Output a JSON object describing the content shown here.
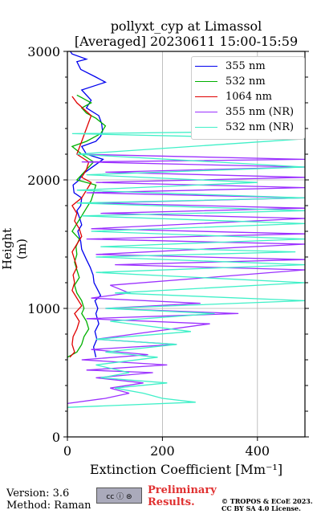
{
  "title_line1": "pollyxt_cyp at Limassol",
  "title_line2": "[Averaged] 20230611 15:00-15:59",
  "xlabel": "Extinction Coefficient [Mm⁻¹]",
  "ylabel": "Height (m)",
  "legend": [
    {
      "label": "355 nm",
      "color": "#0000ee"
    },
    {
      "label": "532 nm",
      "color": "#00b000"
    },
    {
      "label": "1064 nm",
      "color": "#e00000"
    },
    {
      "label": "355 nm (NR)",
      "color": "#9b30ff"
    },
    {
      "label": "532 nm (NR)",
      "color": "#40f0c8"
    }
  ],
  "footer": {
    "version": "Version: 3.6",
    "method": "Method: Raman",
    "cc_badge": "cc ⓘ ⊜",
    "preliminary_line1": "Preliminary",
    "preliminary_line2": "Results.",
    "copyright_line1": "© TROPOS & ECoE 2023.",
    "copyright_line2": "CC BY SA 4.0 License."
  },
  "chart_data": {
    "type": "line",
    "xlim": [
      0,
      500
    ],
    "ylim": [
      0,
      3000
    ],
    "xticks": [
      0,
      200,
      400
    ],
    "yticks": [
      0,
      1000,
      2000,
      3000
    ],
    "grid": true,
    "legend_position": "top-right",
    "series": [
      {
        "name": "355 nm",
        "color": "#0000ee",
        "x": [
          60,
          55,
          62,
          58,
          66,
          60,
          64,
          58,
          70,
          56,
          54,
          48,
          40,
          30,
          28,
          22,
          30,
          26,
          20,
          28,
          30,
          14,
          12,
          25,
          30,
          45,
          60,
          75,
          40,
          30,
          60,
          70,
          74,
          72,
          66,
          40,
          50,
          30,
          80,
          60,
          28,
          20,
          40,
          10,
          6
        ],
        "y": [
          620,
          700,
          760,
          820,
          880,
          960,
          1000,
          1060,
          1100,
          1200,
          1260,
          1320,
          1380,
          1460,
          1520,
          1600,
          1650,
          1700,
          1760,
          1800,
          1860,
          1900,
          1960,
          2000,
          2040,
          2080,
          2120,
          2160,
          2200,
          2260,
          2300,
          2340,
          2380,
          2440,
          2500,
          2560,
          2620,
          2700,
          2760,
          2800,
          2860,
          2920,
          2940,
          2980,
          3000
        ]
      },
      {
        "name": "532 nm",
        "color": "#00b000",
        "x": [
          0,
          20,
          30,
          35,
          45,
          40,
          30,
          35,
          30,
          20,
          15,
          25,
          20,
          15,
          20,
          18,
          25,
          10,
          20,
          30,
          40,
          50,
          55,
          60,
          20,
          30,
          40,
          55,
          30,
          10,
          40,
          70,
          80,
          60,
          40,
          30,
          50,
          40,
          30,
          20
        ],
        "y": [
          620,
          660,
          720,
          780,
          840,
          900,
          960,
          1000,
          1060,
          1120,
          1180,
          1240,
          1300,
          1360,
          1420,
          1480,
          1540,
          1600,
          1660,
          1720,
          1780,
          1840,
          1900,
          1960,
          2000,
          2040,
          2080,
          2140,
          2200,
          2260,
          2300,
          2360,
          2420,
          2480,
          2520,
          2560,
          2600,
          2620,
          2640,
          2660
        ]
      },
      {
        "name": "1064 nm",
        "color": "#e00000",
        "x": [
          5,
          15,
          10,
          12,
          20,
          25,
          15,
          30,
          20,
          10,
          15,
          12,
          20,
          15,
          10,
          20,
          30,
          25,
          15,
          20,
          10,
          30,
          40,
          50,
          30,
          40,
          45,
          20,
          30,
          40,
          50,
          20,
          10
        ],
        "y": [
          620,
          660,
          720,
          780,
          840,
          900,
          960,
          1020,
          1080,
          1140,
          1200,
          1260,
          1320,
          1380,
          1440,
          1500,
          1560,
          1620,
          1680,
          1740,
          1800,
          1860,
          1920,
          1980,
          2020,
          2080,
          2140,
          2200,
          2300,
          2400,
          2500,
          2600,
          2650
        ]
      },
      {
        "name": "355 nm (NR)",
        "color": "#9b30ff",
        "x": [
          0,
          80,
          130,
          90,
          160,
          60,
          180,
          40,
          210,
          30,
          170,
          50,
          230,
          60,
          300,
          40,
          360,
          80,
          280,
          50,
          130,
          90,
          500,
          100,
          500,
          60,
          500,
          40,
          500,
          50,
          500,
          70,
          500,
          60,
          500,
          40,
          500,
          60,
          500,
          80,
          500,
          30,
          500,
          20
        ],
        "y": [
          260,
          300,
          340,
          380,
          420,
          460,
          500,
          520,
          560,
          600,
          640,
          680,
          720,
          760,
          880,
          920,
          960,
          1000,
          1040,
          1080,
          1120,
          1180,
          1300,
          1340,
          1380,
          1420,
          1500,
          1540,
          1580,
          1620,
          1700,
          1740,
          1780,
          1820,
          1860,
          1900,
          1940,
          1980,
          2020,
          2060,
          2100,
          2140,
          2160,
          2200
        ]
      },
      {
        "name": "532 nm (NR)",
        "color": "#40f0c8",
        "x": [
          0,
          270,
          200,
          160,
          100,
          210,
          70,
          130,
          60,
          190,
          80,
          230,
          60,
          260,
          90,
          310,
          80,
          500,
          100,
          500,
          60,
          500,
          60,
          480,
          70,
          500,
          50,
          500,
          30,
          500,
          20,
          500,
          20,
          400,
          40,
          500,
          20,
          500,
          10,
          500
        ],
        "y": [
          230,
          270,
          300,
          340,
          380,
          420,
          460,
          500,
          560,
          620,
          660,
          720,
          760,
          820,
          900,
          960,
          1000,
          1060,
          1120,
          1200,
          1280,
          1340,
          1400,
          1440,
          1480,
          1540,
          1600,
          1660,
          1720,
          1760,
          1820,
          1860,
          1920,
          1980,
          2040,
          2100,
          2200,
          2320,
          2360,
          2380
        ]
      }
    ]
  }
}
